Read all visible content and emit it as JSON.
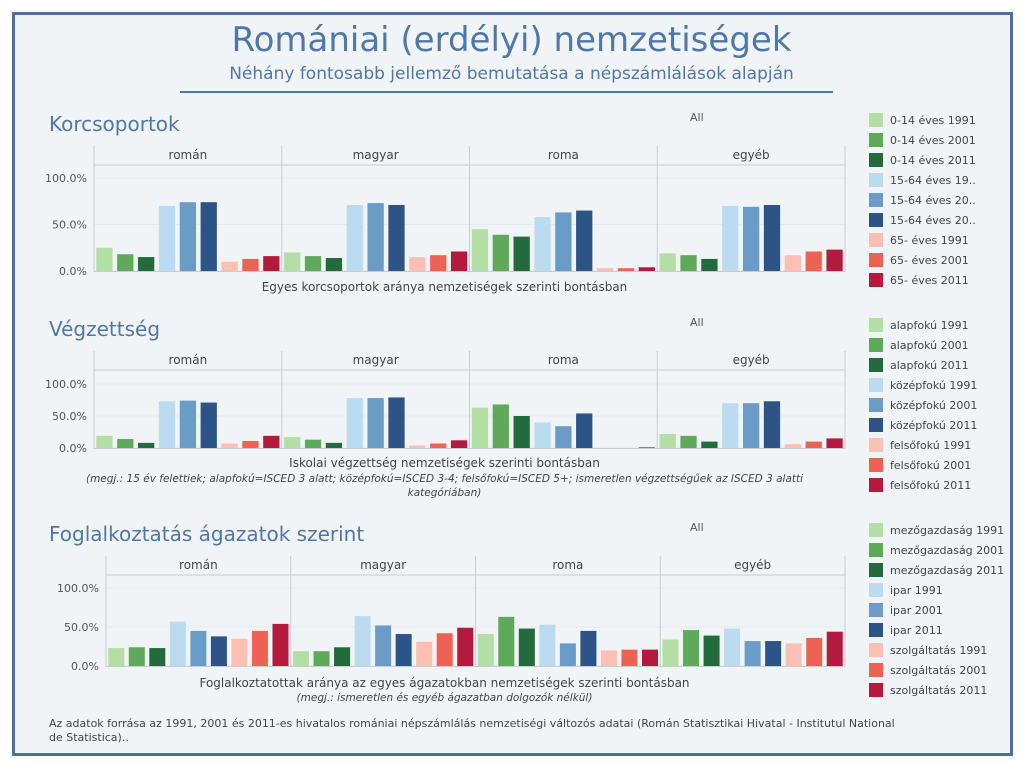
{
  "header": {
    "title": "Romániai (erdélyi) nemzetiségek",
    "subtitle": "Néhány fontosabb jellemző bemutatása a népszámlálások alapján"
  },
  "sections": [
    {
      "title": "Korcsoportok",
      "filter_label": "All",
      "caption": "Egyes korcsoportok aránya nemzetiségek szerinti bontásban",
      "note": "",
      "legend": [
        "0-14 éves 1991",
        "0-14 éves 2001",
        "0-14 éves 2011",
        "15-64 éves 19..",
        "15-64 éves 20..",
        "15-64 éves 20..",
        "65- éves 1991",
        "65- éves 2001",
        "65- éves 2011"
      ]
    },
    {
      "title": "Végzettség",
      "filter_label": "All",
      "caption": "Iskolai végzettség nemzetiségek szerinti bontásban",
      "note": "(megj.: 15 év felettiek; alapfokú=ISCED 3 alatt; középfokú=ISCED 3-4; felsőfokú=ISCED 5+; ismeretlen végzettségűek az ISCED 3 alatti kategóriában)",
      "legend": [
        "alapfokú 1991",
        "alapfokú 2001",
        "alapfokú 2011",
        "középfokú 1991",
        "középfokú 2001",
        "középfokú 2011",
        "felsőfokú 1991",
        "felsőfokú  2001",
        "felsőfokú 2011"
      ]
    },
    {
      "title": "Foglalkoztatás ágazatok szerint",
      "filter_label": "All",
      "caption": "Foglalkoztatottak aránya az egyes ágazatokban nemzetiségek szerinti bontásban",
      "note": "(megj.: ismeretlen és egyéb ágazatban dolgozók nélkül)",
      "legend": [
        "mezőgazdaság 1991",
        "mezőgazdaság 2001",
        "mezőgazdaság 2011",
        "ipar 1991",
        "ipar 2001",
        "ipar 2011",
        "szolgáltatás 1991",
        "szolgáltatás 2001",
        "szolgáltatás 2011"
      ]
    }
  ],
  "colors": [
    "#b3dfa5",
    "#5fa95b",
    "#236b3c",
    "#bbdcf0",
    "#6b9bc7",
    "#2c5487",
    "#fcbfb4",
    "#ee6254",
    "#b41a3d"
  ],
  "chart_data": [
    {
      "type": "bar",
      "panels": [
        "román",
        "magyar",
        "roma",
        "egyéb"
      ],
      "categories": [
        "0-14 éves 1991",
        "0-14 éves 2001",
        "0-14 éves 2011",
        "15-64 éves 1991",
        "15-64 éves 2001",
        "15-64 éves 2011",
        "65- éves 1991",
        "65- éves 2001",
        "65- éves 2011"
      ],
      "series": [
        {
          "name": "román",
          "values": [
            25,
            18,
            15,
            70,
            74,
            74,
            10,
            13,
            16
          ]
        },
        {
          "name": "magyar",
          "values": [
            20,
            16,
            14,
            71,
            73,
            71,
            15,
            17,
            21
          ]
        },
        {
          "name": "roma",
          "values": [
            45,
            39,
            37,
            58,
            63,
            65,
            3,
            3,
            4
          ]
        },
        {
          "name": "egyéb",
          "values": [
            19,
            17,
            13,
            70,
            69,
            71,
            17,
            21,
            23
          ]
        }
      ],
      "yticks": [
        "0.0%",
        "50.0%",
        "100.0%"
      ],
      "ylim": [
        0,
        100
      ],
      "title": "Korcsoportok",
      "xlabel": "Egyes korcsoportok aránya nemzetiségek szerinti bontásban"
    },
    {
      "type": "bar",
      "panels": [
        "román",
        "magyar",
        "roma",
        "egyéb"
      ],
      "categories": [
        "alapfokú 1991",
        "alapfokú 2001",
        "alapfokú 2011",
        "középfokú 1991",
        "középfokú 2001",
        "középfokú 2011",
        "felsőfokú 1991",
        "felsőfokú 2001",
        "felsőfokú 2011"
      ],
      "series": [
        {
          "name": "román",
          "values": [
            19,
            14,
            8,
            73,
            74,
            71,
            7,
            11,
            19
          ]
        },
        {
          "name": "magyar",
          "values": [
            17,
            13,
            8,
            78,
            78,
            79,
            4,
            7,
            12
          ]
        },
        {
          "name": "roma",
          "values": [
            63,
            68,
            50,
            40,
            34,
            54,
            0,
            0,
            1
          ]
        },
        {
          "name": "egyéb",
          "values": [
            22,
            19,
            10,
            70,
            70,
            73,
            6,
            10,
            15
          ]
        }
      ],
      "yticks": [
        "0.0%",
        "50.0%",
        "100.0%"
      ],
      "ylim": [
        0,
        100
      ],
      "title": "Végzettség",
      "xlabel": "Iskolai végzettség nemzetiségek szerinti bontásban"
    },
    {
      "type": "bar",
      "panels": [
        "román",
        "magyar",
        "roma",
        "egyéb"
      ],
      "categories": [
        "mezőgazdaság 1991",
        "mezőgazdaság 2001",
        "mezőgazdaság 2011",
        "ipar 1991",
        "ipar 2001",
        "ipar 2011",
        "szolgáltatás 1991",
        "szolgáltatás 2001",
        "szolgáltatás 2011"
      ],
      "series": [
        {
          "name": "román",
          "values": [
            23,
            24,
            23,
            57,
            45,
            38,
            35,
            45,
            54
          ]
        },
        {
          "name": "magyar",
          "values": [
            19,
            19,
            24,
            64,
            52,
            41,
            31,
            42,
            49
          ]
        },
        {
          "name": "roma",
          "values": [
            41,
            63,
            48,
            53,
            29,
            45,
            20,
            21,
            21
          ]
        },
        {
          "name": "egyéb",
          "values": [
            34,
            46,
            39,
            48,
            32,
            32,
            29,
            36,
            44
          ]
        }
      ],
      "yticks": [
        "0.0%",
        "50.0%",
        "100.0%"
      ],
      "ylim": [
        0,
        100
      ],
      "title": "Foglalkoztatás ágazatok szerint",
      "xlabel": "Foglalkoztatottak aránya az egyes ágazatokban nemzetiségek szerinti bontásban"
    }
  ],
  "footer": "Az adatok forrása az 1991, 2001 és 2011-es hivatalos romániai népszámlálás nemzetiségi változós adatai (Román Statisztikai Hivatal - Institutul National de Statistica).."
}
